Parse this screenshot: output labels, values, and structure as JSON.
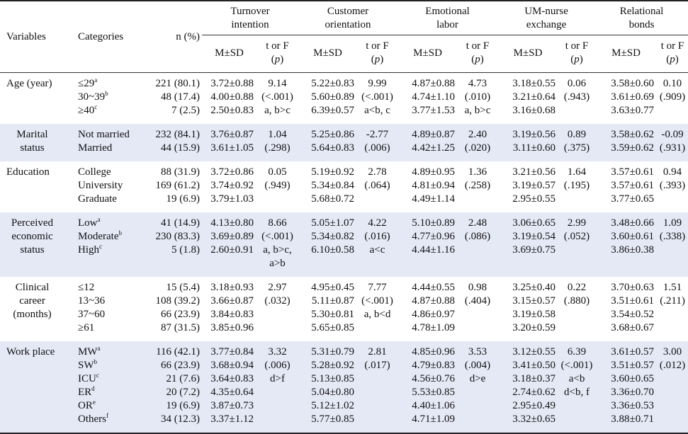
{
  "headers": {
    "variables": "Variables",
    "categories": "Categories",
    "n_pct": "n (%)",
    "groups": [
      {
        "line1": "Turnover",
        "line2": "intention"
      },
      {
        "line1": "Customer",
        "line2": "orientation"
      },
      {
        "line1": "Emotional",
        "line2": "labor"
      },
      {
        "line1": "UM-nurse",
        "line2": "exchange"
      },
      {
        "line1": "Relational",
        "line2": "bonds"
      }
    ],
    "msd": "M±SD",
    "tf_line1": "t or F",
    "tf_p": "p"
  },
  "rows": [
    {
      "var_lines": [
        "Age (year)"
      ],
      "shade": false,
      "cats": [
        {
          "label": "≤29",
          "sup": "a"
        },
        {
          "label": "30~39",
          "sup": "b"
        },
        {
          "label": "≥40",
          "sup": "c"
        }
      ],
      "n": [
        "221 (80.1)",
        "48 (17.4)",
        "7 (2.5)"
      ],
      "groups": [
        {
          "msd": [
            "3.72±0.88",
            "4.00±0.88",
            "2.50±0.83"
          ],
          "tf": [
            "9.14",
            "(<.001)",
            "a, b>c"
          ]
        },
        {
          "msd": [
            "5.22±0.83",
            "5.60±0.89",
            "6.39±0.57"
          ],
          "tf": [
            "9.99",
            "(<.001)",
            "a<b, c"
          ]
        },
        {
          "msd": [
            "4.87±0.88",
            "4.74±1.10",
            "3.77±1.53"
          ],
          "tf": [
            "4.73",
            "(.010)",
            "a, b>c"
          ]
        },
        {
          "msd": [
            "3.18±0.55",
            "3.21±0.64",
            "3.16±0.68"
          ],
          "tf": [
            "0.06",
            "(.943)"
          ]
        },
        {
          "msd": [
            "3.58±0.60",
            "3.61±0.69",
            "3.63±0.77"
          ],
          "tf": [
            "0.10",
            "(.909)"
          ]
        }
      ]
    },
    {
      "var_lines": [
        "Marital",
        "status"
      ],
      "shade": true,
      "cats": [
        {
          "label": "Not married",
          "sup": ""
        },
        {
          "label": "Married",
          "sup": ""
        }
      ],
      "n": [
        "232 (84.1)",
        "44 (15.9)"
      ],
      "groups": [
        {
          "msd": [
            "3.76±0.87",
            "3.61±1.05"
          ],
          "tf": [
            "1.04",
            "(.298)"
          ]
        },
        {
          "msd": [
            "5.25±0.86",
            "5.64±0.83"
          ],
          "tf": [
            "-2.77",
            "(.006)"
          ]
        },
        {
          "msd": [
            "4.89±0.87",
            "4.42±1.25"
          ],
          "tf": [
            "2.40",
            "(.020)"
          ]
        },
        {
          "msd": [
            "3.19±0.56",
            "3.11±0.60"
          ],
          "tf": [
            "0.89",
            "(.375)"
          ]
        },
        {
          "msd": [
            "3.58±0.62",
            "3.59±0.62"
          ],
          "tf": [
            "-0.09",
            "(.931)"
          ]
        }
      ]
    },
    {
      "var_lines": [
        "Education"
      ],
      "shade": false,
      "cats": [
        {
          "label": "College",
          "sup": ""
        },
        {
          "label": "University",
          "sup": ""
        },
        {
          "label": "Graduate",
          "sup": ""
        }
      ],
      "n": [
        "88 (31.9)",
        "169 (61.2)",
        "19 (6.9)"
      ],
      "groups": [
        {
          "msd": [
            "3.72±0.86",
            "3.74±0.92",
            "3.79±1.03"
          ],
          "tf": [
            "0.05",
            "(.949)"
          ]
        },
        {
          "msd": [
            "5.19±0.92",
            "5.34±0.84",
            "5.68±0.72"
          ],
          "tf": [
            "2.78",
            "(.064)"
          ]
        },
        {
          "msd": [
            "4.89±0.95",
            "4.81±0.94",
            "4.49±1.14"
          ],
          "tf": [
            "1.36",
            "(.258)"
          ]
        },
        {
          "msd": [
            "3.21±0.56",
            "3.19±0.57",
            "2.95±0.55"
          ],
          "tf": [
            "1.64",
            "(.195)"
          ]
        },
        {
          "msd": [
            "3.57±0.61",
            "3.57±0.61",
            "3.77±0.65"
          ],
          "tf": [
            "0.94",
            "(.393)"
          ]
        }
      ]
    },
    {
      "var_lines": [
        "Perceived",
        "economic",
        "status"
      ],
      "shade": true,
      "cats": [
        {
          "label": "Low",
          "sup": "a"
        },
        {
          "label": "Moderate",
          "sup": "b"
        },
        {
          "label": "High",
          "sup": "c"
        }
      ],
      "n": [
        "41 (14.9)",
        "230 (83.3)",
        "5 (1.8)"
      ],
      "groups": [
        {
          "msd": [
            "4.13±0.80",
            "3.69±0.89",
            "2.60±0.91"
          ],
          "tf": [
            "8.66",
            "(<.001)",
            "a, b>c,",
            "a>b"
          ]
        },
        {
          "msd": [
            "5.05±1.07",
            "5.34±0.82",
            "6.10±0.58"
          ],
          "tf": [
            "4.22",
            "(.016)",
            "a<c"
          ]
        },
        {
          "msd": [
            "5.10±0.89",
            "4.77±0.96",
            "4.44±1.16"
          ],
          "tf": [
            "2.48",
            "(.086)"
          ]
        },
        {
          "msd": [
            "3.06±0.65",
            "3.19±0.54",
            "3.69±0.75"
          ],
          "tf": [
            "2.99",
            "(.052)"
          ]
        },
        {
          "msd": [
            "3.48±0.66",
            "3.60±0.61",
            "3.86±0.38"
          ],
          "tf": [
            "1.09",
            "(.338)"
          ]
        }
      ]
    },
    {
      "var_lines": [
        "Clinical",
        "career",
        "(months)"
      ],
      "shade": false,
      "cats": [
        {
          "label": "≤12",
          "sup": ""
        },
        {
          "label": "13~36",
          "sup": ""
        },
        {
          "label": "37~60",
          "sup": ""
        },
        {
          "label": "≥61",
          "sup": ""
        }
      ],
      "n": [
        "15 (5.4)",
        "108 (39.2)",
        "66 (23.9)",
        "87 (31.5)"
      ],
      "groups": [
        {
          "msd": [
            "3.18±0.93",
            "3.66±0.87",
            "3.84±0.83",
            "3.85±0.96"
          ],
          "tf": [
            "2.97",
            "(.032)"
          ]
        },
        {
          "msd": [
            "4.95±0.45",
            "5.11±0.87",
            "5.30±0.81",
            "5.65±0.85"
          ],
          "tf": [
            "7.77",
            "(<.001)",
            "a, b<d"
          ]
        },
        {
          "msd": [
            "4.44±0.55",
            "4.87±0.88",
            "4.86±0.97",
            "4.78±1.09"
          ],
          "tf": [
            "0.98",
            "(.404)"
          ]
        },
        {
          "msd": [
            "3.25±0.40",
            "3.15±0.57",
            "3.19±0.58",
            "3.20±0.59"
          ],
          "tf": [
            "0.22",
            "(.880)"
          ]
        },
        {
          "msd": [
            "3.70±0.63",
            "3.51±0.61",
            "3.54±0.52",
            "3.68±0.67"
          ],
          "tf": [
            "1.51",
            "(.211)"
          ]
        }
      ]
    },
    {
      "var_lines": [
        "Work place"
      ],
      "shade": true,
      "cats": [
        {
          "label": "MW",
          "sup": "a"
        },
        {
          "label": "SW",
          "sup": "b"
        },
        {
          "label": "ICU",
          "sup": "c"
        },
        {
          "label": "ER",
          "sup": "d"
        },
        {
          "label": "OR",
          "sup": "e"
        },
        {
          "label": "Others",
          "sup": "f"
        }
      ],
      "n": [
        "116 (42.1)",
        "66 (23.9)",
        "21 (7.6)",
        "20 (7.2)",
        "19 (6.9)",
        "34 (12.3)"
      ],
      "groups": [
        {
          "msd": [
            "3.77±0.84",
            "3.68±0.94",
            "3.64±0.83",
            "4.35±0.64",
            "3.87±0.73",
            "3.37±1.12"
          ],
          "tf": [
            "3.32",
            "(.006)",
            "d>f"
          ]
        },
        {
          "msd": [
            "5.31±0.79",
            "5.28±0.92",
            "5.13±0.85",
            "5.04±0.80",
            "5.12±1.02",
            "5.77±0.85"
          ],
          "tf": [
            "2.81",
            "(.017)"
          ]
        },
        {
          "msd": [
            "4.85±0.96",
            "4.79±0.83",
            "4.56±0.76",
            "5.53±0.85",
            "4.40±1.06",
            "4.71±1.09"
          ],
          "tf": [
            "3.53",
            "(.004)",
            "d>e"
          ]
        },
        {
          "msd": [
            "3.12±0.55",
            "3.41±0.50",
            "3.18±0.37",
            "2.74±0.62",
            "2.95±0.49",
            "3.32±0.65"
          ],
          "tf": [
            "6.39",
            "(<.001)",
            "a<b",
            "d<b, f"
          ]
        },
        {
          "msd": [
            "3.61±0.57",
            "3.51±0.57",
            "3.60±0.65",
            "3.36±0.70",
            "3.36±0.53",
            "3.88±0.71"
          ],
          "tf": [
            "3.00",
            "(.012)"
          ]
        }
      ]
    }
  ]
}
